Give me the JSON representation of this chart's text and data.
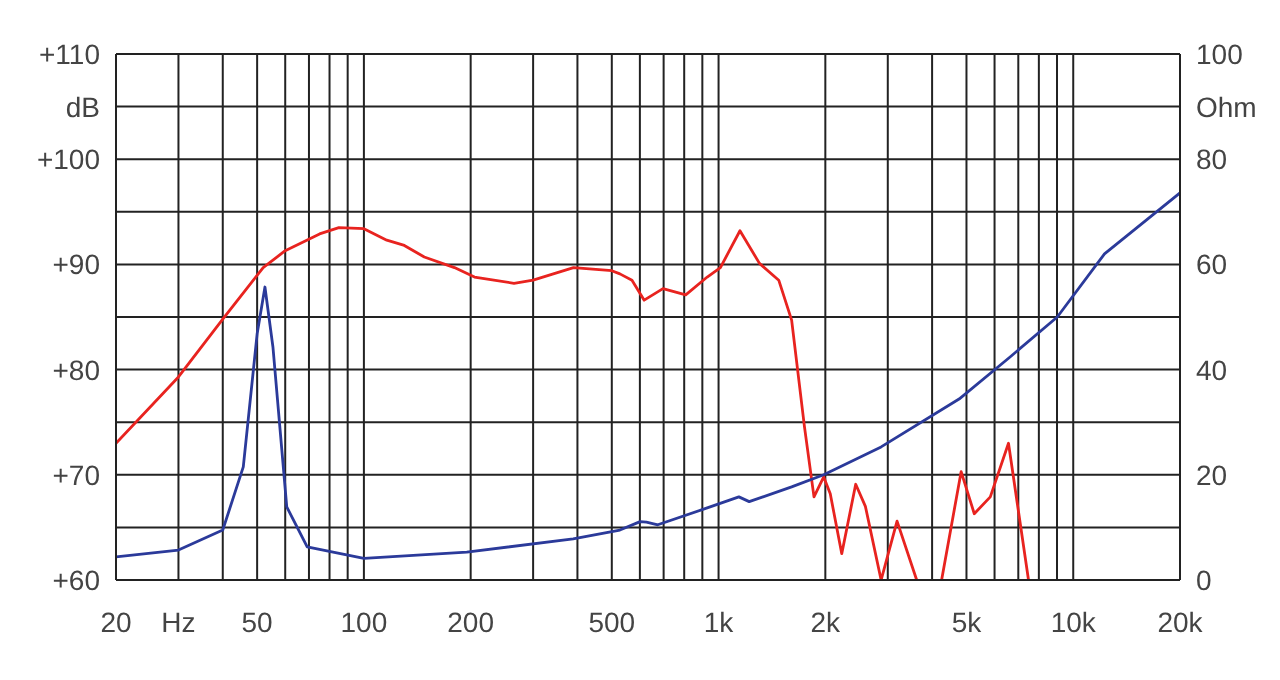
{
  "chart_data": {
    "type": "line",
    "log": "x",
    "grid": true,
    "marker": "none",
    "line_style": "solid",
    "xlim": [
      20,
      20000
    ],
    "xticks": [
      20,
      {
        "value": 30,
        "label": "Hz"
      },
      {
        "value": 40,
        "label": null
      },
      50,
      {
        "value": 60,
        "label": null
      },
      {
        "value": 70,
        "label": null
      },
      {
        "value": 80,
        "label": null
      },
      {
        "value": 90,
        "label": null
      },
      100,
      200,
      {
        "value": 300,
        "label": null
      },
      {
        "value": 400,
        "label": null
      },
      500,
      {
        "value": 600,
        "label": null
      },
      {
        "value": 700,
        "label": null
      },
      {
        "value": 800,
        "label": null
      },
      {
        "value": 900,
        "label": null
      },
      {
        "value": 1000,
        "label": "1k"
      },
      {
        "value": 2000,
        "label": "2k"
      },
      {
        "value": 3000,
        "label": null
      },
      {
        "value": 4000,
        "label": null
      },
      {
        "value": 5000,
        "label": "5k"
      },
      {
        "value": 6000,
        "label": null
      },
      {
        "value": 7000,
        "label": null
      },
      {
        "value": 8000,
        "label": null
      },
      {
        "value": 9000,
        "label": null
      },
      {
        "value": 10000,
        "label": "10k"
      },
      {
        "value": 20000,
        "label": "20k"
      }
    ],
    "ylim": [
      60,
      110
    ],
    "yticks": [
      {
        "value": 60,
        "label": "+60"
      },
      {
        "value": 65,
        "label": null
      },
      {
        "value": 70,
        "label": "+70"
      },
      {
        "value": 75,
        "label": null
      },
      {
        "value": 80,
        "label": "+80"
      },
      {
        "value": 85,
        "label": null
      },
      {
        "value": 90,
        "label": "+90"
      },
      {
        "value": 95,
        "label": null
      },
      {
        "value": 100,
        "label": "+100"
      },
      {
        "value": 105,
        "label": "dB"
      },
      {
        "value": 110,
        "label": "+110"
      }
    ],
    "y2lim": [
      0,
      100
    ],
    "y2ticks": [
      0,
      20,
      40,
      60,
      80,
      {
        "value": 90,
        "label": "Ohm"
      },
      100
    ],
    "series": [
      {
        "color": "#e8231f",
        "x": [
          20,
          30,
          40,
          52,
          60,
          75,
          85,
          100,
          116,
          130,
          148,
          180,
          205,
          265,
          300,
          390,
          500,
          527,
          570,
          617,
          697,
          808,
          929,
          1012,
          1149,
          1304,
          1478,
          1607,
          1746,
          1858,
          1979,
          2065,
          2225,
          2436,
          2594,
          2873,
          3186,
          3619,
          3900,
          4255,
          4830,
          5260,
          5837,
          6568,
          7480
        ],
        "values": [
          73,
          79.3,
          84.8,
          89.7,
          91.3,
          92.9,
          93.5,
          93.4,
          92.3,
          91.8,
          90.7,
          89.7,
          88.8,
          88.2,
          88.5,
          89.7,
          89.4,
          89.1,
          88.5,
          86.6,
          87.7,
          87.1,
          88.8,
          89.7,
          93.2,
          90.1,
          88.5,
          84.7,
          74.6,
          67.9,
          69.8,
          68.2,
          62.5,
          69.1,
          67,
          60,
          65.6,
          60,
          null,
          60,
          70.3,
          66.3,
          67.9,
          73,
          60
        ]
      },
      {
        "color": "#2b3a9a",
        "axis": "y2",
        "x": [
          20,
          30,
          40,
          45.7,
          50,
          52.6,
          55.4,
          60.6,
          69.2,
          100,
          195,
          389,
          527,
          601,
          626,
          674,
          929,
          1141,
          1220,
          1607,
          1979,
          2873,
          4766,
          6636,
          9016,
          12250,
          20000
        ],
        "values": [
          4.4,
          5.7,
          9.5,
          21.5,
          46.8,
          55.7,
          44.3,
          13.9,
          6.3,
          4.1,
          5.3,
          7.8,
          9.5,
          11.1,
          11,
          10.5,
          13.7,
          15.8,
          14.9,
          17.7,
          20,
          25.3,
          34.4,
          42.4,
          50,
          62,
          73.6
        ]
      }
    ]
  }
}
